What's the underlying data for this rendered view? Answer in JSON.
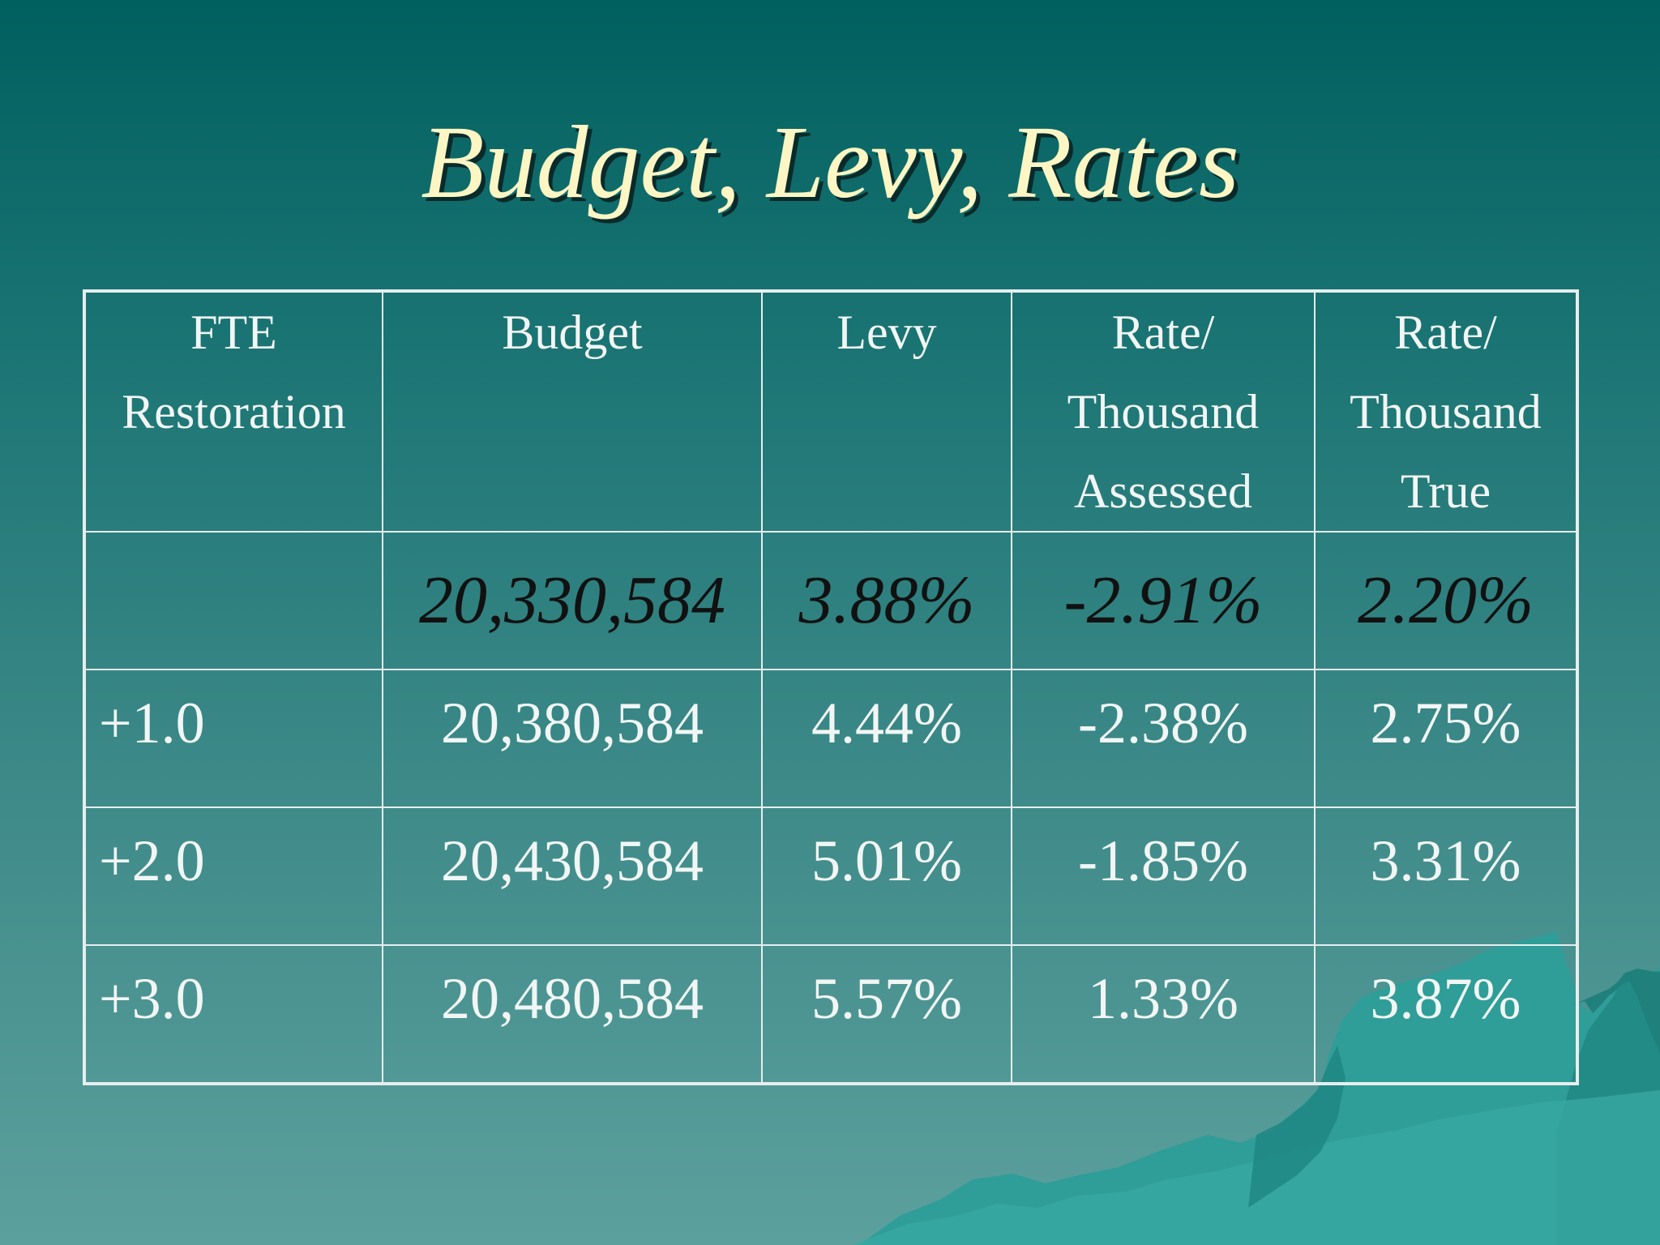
{
  "slide": {
    "title": "Budget, Levy, Rates"
  },
  "table": {
    "headers": [
      {
        "lines": [
          "FTE",
          "Restoration"
        ]
      },
      {
        "lines": [
          "Budget"
        ]
      },
      {
        "lines": [
          "Levy"
        ]
      },
      {
        "lines": [
          "Rate/",
          "Thousand",
          "Assessed"
        ]
      },
      {
        "lines": [
          "Rate/",
          "Thousand",
          "True"
        ]
      }
    ],
    "highlight_row": {
      "fte": "",
      "budget": "20,330,584",
      "levy": "3.88%",
      "rate_assessed": "-2.91%",
      "rate_true": "2.20%"
    },
    "rows": [
      {
        "fte": "+1.0",
        "budget": "20,380,584",
        "levy": "4.44%",
        "rate_assessed": "-2.38%",
        "rate_true": "2.75%"
      },
      {
        "fte": "+2.0",
        "budget": "20,430,584",
        "levy": "5.01%",
        "rate_assessed": "-1.85%",
        "rate_true": "3.31%"
      },
      {
        "fte": "+3.0",
        "budget": "20,480,584",
        "levy": "5.57%",
        "rate_assessed": "1.33%",
        "rate_true": "3.87%"
      }
    ]
  },
  "colors": {
    "background_top": "#00605f",
    "background_bottom": "#5ca09d",
    "title": "#fbf6c4",
    "table_lines": "#e6eeee",
    "highlight_text": "#111111"
  }
}
